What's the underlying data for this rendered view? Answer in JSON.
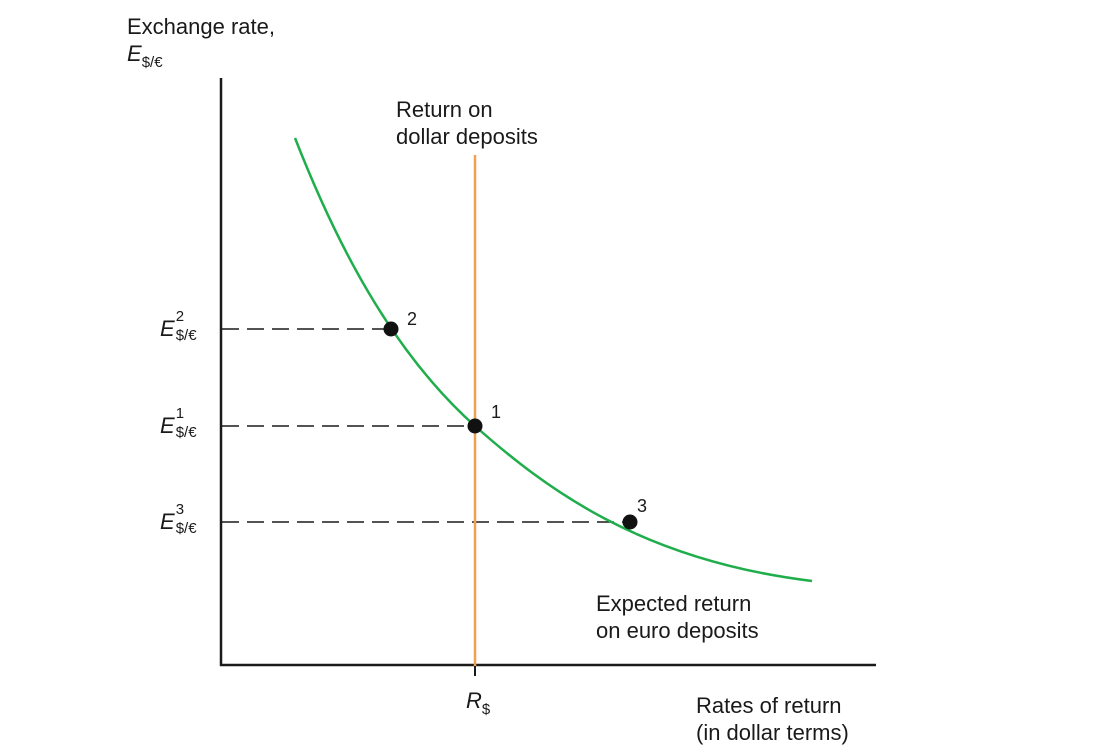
{
  "y_axis": {
    "title": "Exchange rate,",
    "symbol": "E",
    "symbol_sub": "$/€"
  },
  "x_axis": {
    "label_line1": "Rates of return",
    "label_line2": "(in dollar terms)",
    "tick_symbol": "R",
    "tick_sub": "$"
  },
  "dollar_line": {
    "label_line1": "Return on",
    "label_line2": "dollar deposits",
    "color": "#f0a050"
  },
  "euro_curve": {
    "label_line1": "Expected return",
    "label_line2": "on euro deposits",
    "color": "#1fae4b"
  },
  "levels": [
    {
      "symbol": "E",
      "sup": "2",
      "sub": "$/€",
      "point": "2"
    },
    {
      "symbol": "E",
      "sup": "1",
      "sub": "$/€",
      "point": "1"
    },
    {
      "symbol": "E",
      "sup": "3",
      "sub": "$/€",
      "point": "3"
    }
  ],
  "colors": {
    "axis": "#1a1a1a",
    "dash": "#1a1a1a",
    "point": "#111111"
  }
}
